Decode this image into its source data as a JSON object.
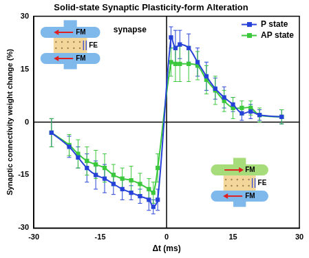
{
  "chart_data": {
    "type": "line",
    "title": "Solid-state Synaptic Plasticity-form Alteration",
    "x_label": "Δt (ms)",
    "y_label": "Synaptic connectivity weight change (%)",
    "x": [
      -26,
      -22,
      -20,
      -18,
      -16,
      -14,
      -12,
      -10,
      -8,
      -6,
      -4,
      -3,
      -2,
      1,
      2,
      3,
      5,
      7,
      9,
      11,
      13,
      15,
      17,
      19,
      21,
      26
    ],
    "series": [
      {
        "name": "P state",
        "color": "#2742d8",
        "marker": "square",
        "values": [
          -3,
          -7,
          -10,
          -13,
          -15,
          -16,
          -17.5,
          -19,
          -20,
          -21,
          -22,
          -24,
          -22,
          24,
          21,
          22,
          21,
          17,
          13,
          9.5,
          7,
          5,
          2.5,
          3,
          2,
          1.5
        ],
        "errors": [
          4,
          3,
          3,
          4,
          4,
          4,
          3,
          3,
          2,
          2,
          3,
          2,
          3,
          3,
          5,
          4,
          4,
          4,
          4,
          3,
          3,
          2,
          2,
          2,
          1.5,
          2
        ]
      },
      {
        "name": "AP state",
        "color": "#3cc83c",
        "marker": "square",
        "values": [
          -3,
          -6.5,
          -9,
          -11,
          -12,
          -13,
          -15,
          -16,
          -16.5,
          -17.5,
          -19,
          -20,
          -13,
          17,
          16.5,
          16.5,
          16.5,
          16,
          12,
          9,
          6,
          4,
          4,
          4,
          2,
          1.5
        ],
        "errors": [
          4,
          3,
          4,
          4,
          4,
          4,
          3,
          3,
          4,
          3,
          3,
          3,
          4,
          4,
          5,
          5,
          5,
          4,
          4,
          4,
          3,
          3,
          2,
          2,
          2,
          2
        ]
      }
    ],
    "xlim": [
      -30,
      30
    ],
    "xticks": [
      -30,
      -15,
      0,
      15,
      30
    ],
    "ylim": [
      -30,
      30
    ],
    "yticks": [
      -30,
      -15,
      0,
      15,
      30
    ],
    "grid": false,
    "legend": "upper right",
    "annotations": [
      "synapse",
      "FM",
      "FE",
      "FM",
      "FM",
      "FE",
      "FM"
    ]
  }
}
